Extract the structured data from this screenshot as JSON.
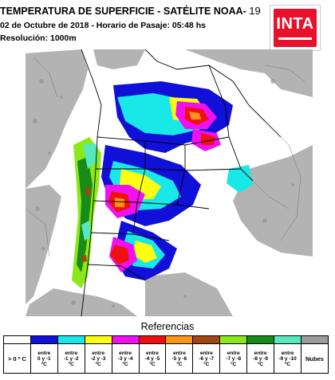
{
  "header": {
    "title": "TEMPERATURA DE SUPERFICIE - SATÉLITE NOAA-",
    "satellite_number": "19",
    "date_line": "02 de Octubre de 2018 - Horario de Pasaje: 05:48 hs",
    "resolution": "Resolución: 1000m"
  },
  "logo": {
    "text": "INTA",
    "color": "#e8102a"
  },
  "legend": {
    "title": "Referencias",
    "items": [
      {
        "l1": "",
        "l2": "> 0 º C",
        "l3": "",
        "color": "#ffffff"
      },
      {
        "l1": "entre",
        "l2": "0 y -1",
        "l3": "ºC",
        "color": "#1010d8"
      },
      {
        "l1": "entre",
        "l2": "-1 y -2",
        "l3": "ºC",
        "color": "#18e8e8"
      },
      {
        "l1": "entre",
        "l2": "-2 y -3",
        "l3": "ºC",
        "color": "#ffff10"
      },
      {
        "l1": "entre",
        "l2": "-3 y -4",
        "l3": "ºC",
        "color": "#f010f0"
      },
      {
        "l1": "entre",
        "l2": "-4 y -5",
        "l3": "ºC",
        "color": "#f01010"
      },
      {
        "l1": "entre",
        "l2": "-5 y -6",
        "l3": "ºC",
        "color": "#ff9418"
      },
      {
        "l1": "entre",
        "l2": "-6 y -7",
        "l3": "ºC",
        "color": "#a04810"
      },
      {
        "l1": "entre",
        "l2": "-7 y -8",
        "l3": "ºC",
        "color": "#8ce818"
      },
      {
        "l1": "entre",
        "l2": "-8 y -9",
        "l3": "ºC",
        "color": "#188c18"
      },
      {
        "l1": "entre",
        "l2": "-9 y -10",
        "l3": "ºC",
        "color": "#58e8c0"
      },
      {
        "l1": "",
        "l2": "Nubes",
        "l3": "",
        "color": "#9c9c9c"
      }
    ]
  },
  "map_colors": {
    "clouds": "#b4b4b4",
    "land": "#ffffff",
    "borders": "#000000",
    "provinces": "#7a7a7a"
  }
}
